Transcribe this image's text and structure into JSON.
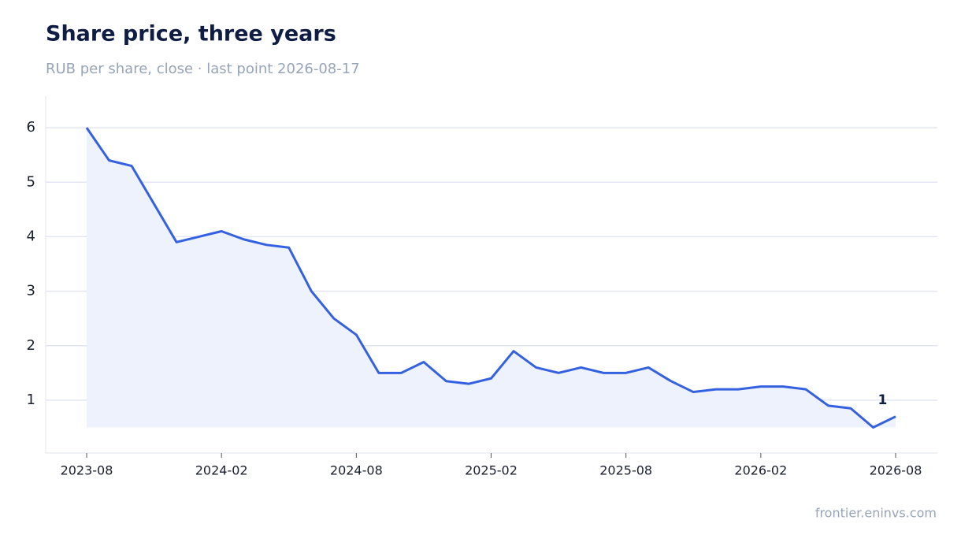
{
  "chart_data": {
    "type": "line",
    "title": "Share price, three years",
    "subtitle": "RUB per share, close · last point 2026-08-17",
    "source": "frontier.eninvs.com",
    "x": [
      "2023-08",
      "2023-09",
      "2023-10",
      "2023-11",
      "2023-12",
      "2024-01",
      "2024-02",
      "2024-03",
      "2024-04",
      "2024-05",
      "2024-06",
      "2024-07",
      "2024-08",
      "2024-09",
      "2024-10",
      "2024-11",
      "2024-12",
      "2025-01",
      "2025-02",
      "2025-03",
      "2025-04",
      "2025-05",
      "2025-06",
      "2025-07",
      "2025-08",
      "2025-09",
      "2025-10",
      "2025-11",
      "2025-12",
      "2026-01",
      "2026-02",
      "2026-03",
      "2026-04",
      "2026-05",
      "2026-06",
      "2026-07",
      "2026-08"
    ],
    "series": [
      {
        "name": "Close",
        "color": "#3461e0",
        "fill": "#edf2fc",
        "values": [
          6.0,
          5.4,
          5.3,
          4.6,
          3.9,
          4.0,
          4.1,
          3.95,
          3.85,
          3.8,
          3.0,
          2.5,
          2.2,
          1.5,
          1.5,
          1.7,
          1.35,
          1.3,
          1.4,
          1.9,
          1.6,
          1.5,
          1.6,
          1.5,
          1.5,
          1.6,
          1.35,
          1.15,
          1.2,
          1.2,
          1.25,
          1.25,
          1.2,
          0.9,
          0.85,
          0.5,
          0.7
        ]
      }
    ],
    "annotations": [
      {
        "text": "1",
        "x": "2026-07",
        "y": 1.0
      }
    ],
    "ylim": [
      0.03,
      6.58
    ],
    "yticks": [
      1,
      2,
      3,
      4,
      5,
      6
    ],
    "xticks": [
      "2023-08",
      "2024-02",
      "2024-08",
      "2025-02",
      "2025-08",
      "2026-02",
      "2026-08"
    ],
    "grid": true
  }
}
